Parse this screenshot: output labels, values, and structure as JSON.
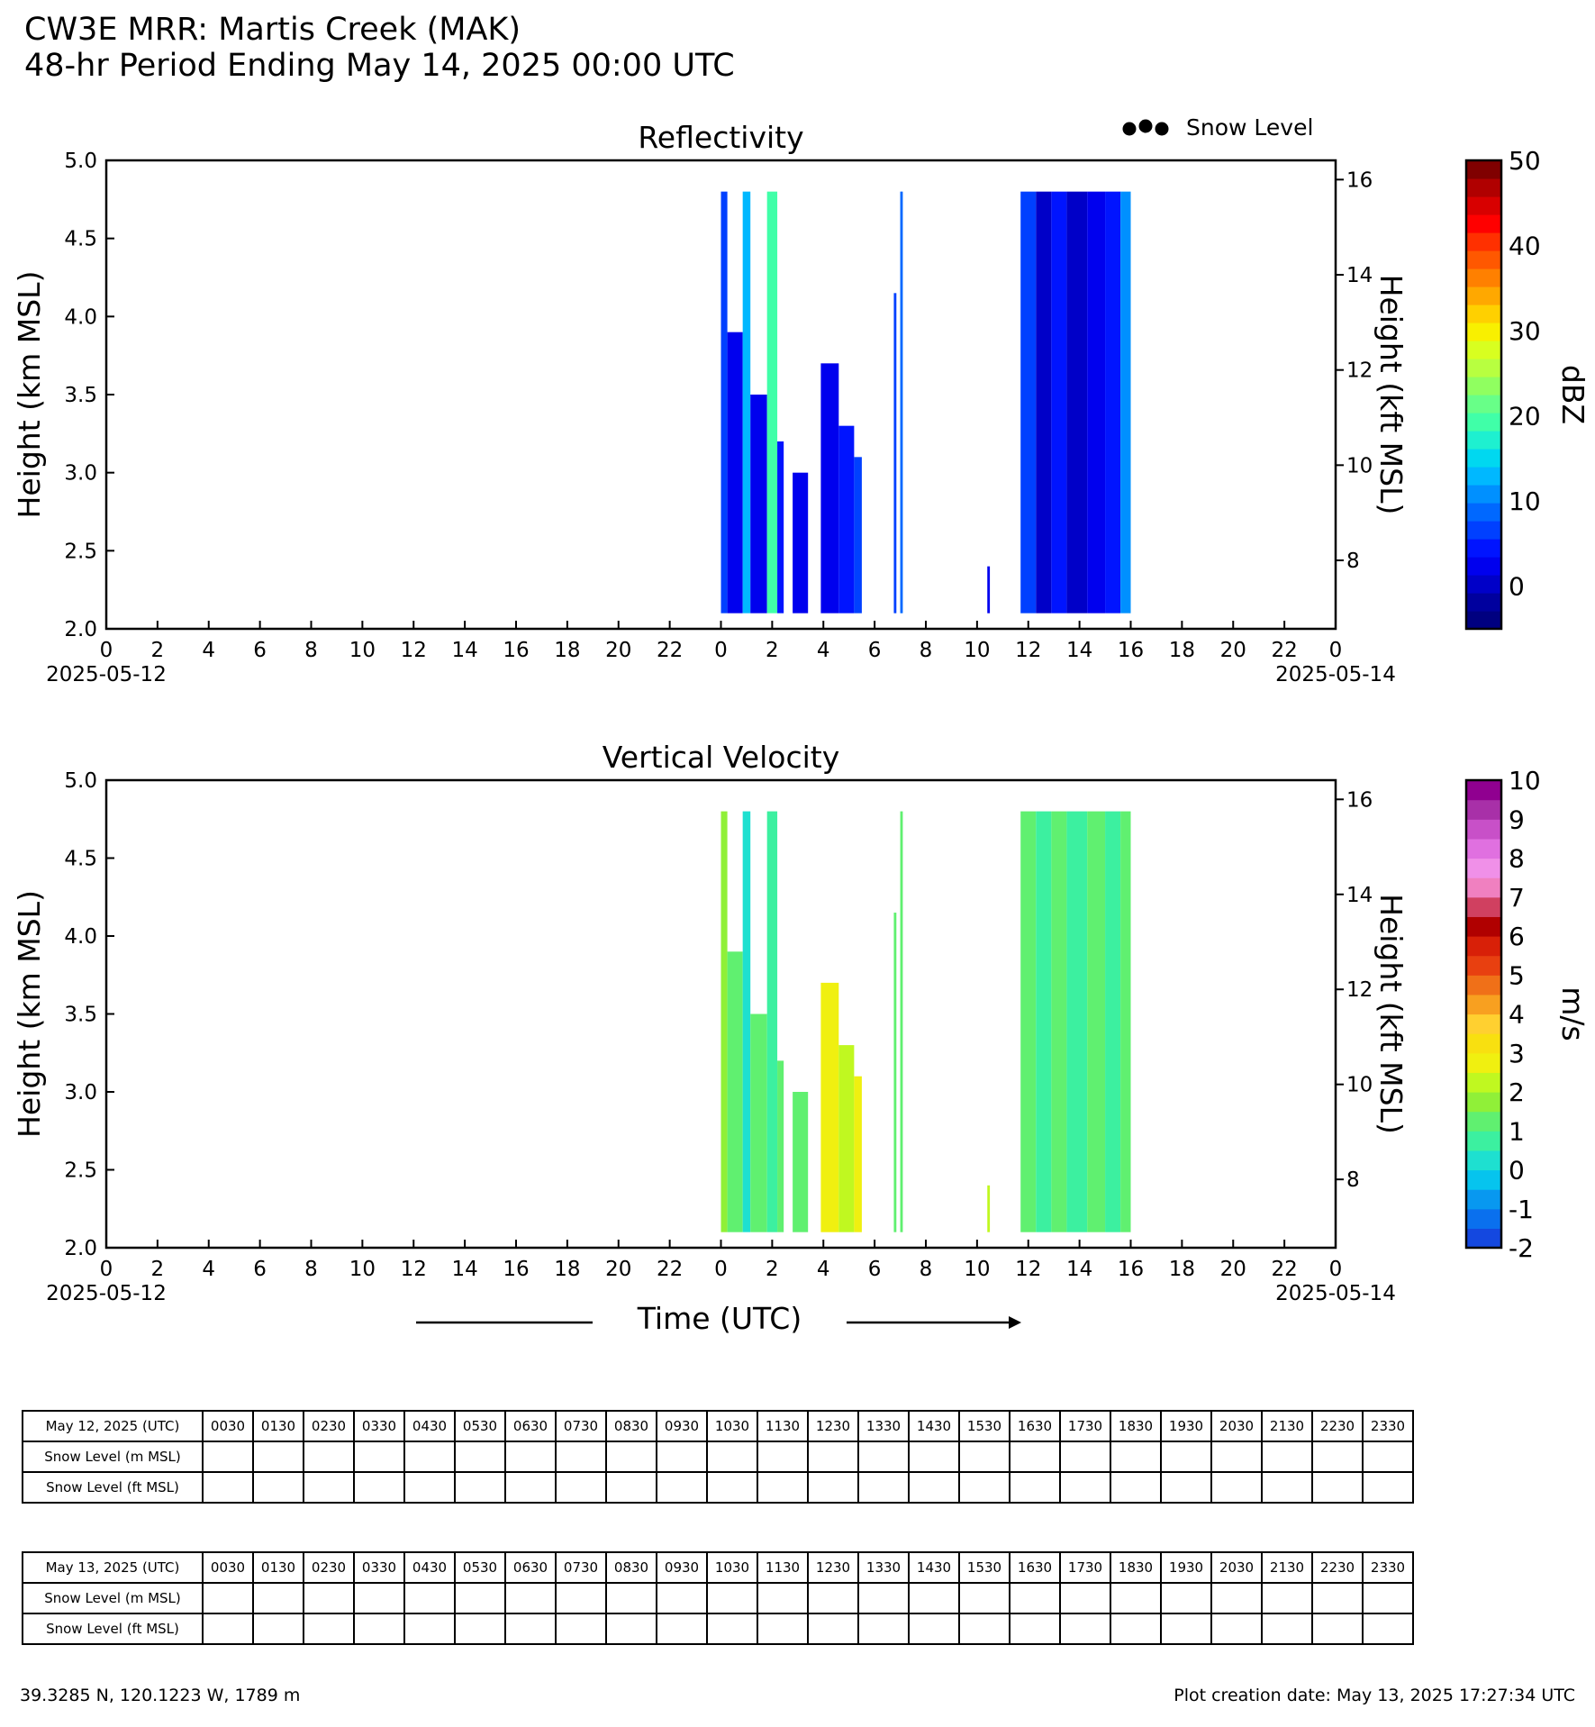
{
  "header": {
    "title": "CW3E MRR: Martis Creek (MAK)",
    "subtitle": "48-hr Period Ending May 14, 2025 00:00 UTC"
  },
  "legend": {
    "snow_level_label": "Snow Level"
  },
  "xaxis": {
    "tick_labels": [
      "0",
      "2",
      "4",
      "6",
      "8",
      "10",
      "12",
      "14",
      "16",
      "18",
      "20",
      "22",
      "0",
      "2",
      "4",
      "6",
      "8",
      "10",
      "12",
      "14",
      "16",
      "18",
      "20",
      "22",
      "0"
    ],
    "range_hours": [
      0,
      48
    ],
    "start_date_label": "2025-05-12",
    "end_date_label": "2025-05-14",
    "time_label": "Time (UTC)"
  },
  "chart_data": [
    {
      "type": "heatmap",
      "title": "Reflectivity",
      "ylabel": "Height (km MSL)",
      "ylabel_right": "Height (kft MSL)",
      "ylim": [
        2.0,
        5.0
      ],
      "yticks": [
        "2.0",
        "2.5",
        "3.0",
        "3.5",
        "4.0",
        "4.5",
        "5.0"
      ],
      "yticks_right": [
        "8",
        "10",
        "12",
        "14",
        "16"
      ],
      "colorbar": {
        "label": "dBZ",
        "range": [
          -5,
          50
        ],
        "ticks": [
          "0",
          "10",
          "20",
          "30",
          "40",
          "50"
        ],
        "colors": [
          "#000080",
          "#00009e",
          "#0000c8",
          "#0000ee",
          "#0014ff",
          "#0040ff",
          "#0068ff",
          "#0090ff",
          "#00b8ff",
          "#00d8f0",
          "#1ef0d0",
          "#40ffa8",
          "#68ff88",
          "#90ff60",
          "#b8ff40",
          "#d8ff20",
          "#f8f000",
          "#ffd000",
          "#ffa800",
          "#ff8000",
          "#ff5800",
          "#ff3000",
          "#ff0000",
          "#d80000",
          "#b00000",
          "#800000"
        ]
      },
      "rain_blocks": [
        {
          "start_h": 24.0,
          "end_h": 24.25,
          "top_km": 4.8,
          "dbz": 6
        },
        {
          "start_h": 24.25,
          "end_h": 24.85,
          "top_km": 3.9,
          "dbz": 3
        },
        {
          "start_h": 24.85,
          "end_h": 25.15,
          "top_km": 4.8,
          "dbz": 14
        },
        {
          "start_h": 25.15,
          "end_h": 25.8,
          "top_km": 3.5,
          "dbz": 2
        },
        {
          "start_h": 25.8,
          "end_h": 26.2,
          "top_km": 4.8,
          "dbz": 19
        },
        {
          "start_h": 26.2,
          "end_h": 26.45,
          "top_km": 3.2,
          "dbz": 4
        },
        {
          "start_h": 26.8,
          "end_h": 27.4,
          "top_km": 3.0,
          "dbz": 3
        },
        {
          "start_h": 27.9,
          "end_h": 28.6,
          "top_km": 3.7,
          "dbz": 2
        },
        {
          "start_h": 28.6,
          "end_h": 29.2,
          "top_km": 3.3,
          "dbz": 5
        },
        {
          "start_h": 29.2,
          "end_h": 29.5,
          "top_km": 3.1,
          "dbz": 7
        },
        {
          "start_h": 30.75,
          "end_h": 30.85,
          "top_km": 4.15,
          "dbz": 6
        },
        {
          "start_h": 31.0,
          "end_h": 31.1,
          "top_km": 4.8,
          "dbz": 9
        },
        {
          "start_h": 34.4,
          "end_h": 34.5,
          "top_km": 2.4,
          "dbz": 3
        },
        {
          "start_h": 35.7,
          "end_h": 36.3,
          "top_km": 4.8,
          "dbz": 6
        },
        {
          "start_h": 36.3,
          "end_h": 36.9,
          "top_km": 4.8,
          "dbz": 1
        },
        {
          "start_h": 36.9,
          "end_h": 37.5,
          "top_km": 4.8,
          "dbz": 4
        },
        {
          "start_h": 37.5,
          "end_h": 38.3,
          "top_km": 4.8,
          "dbz": 0
        },
        {
          "start_h": 38.3,
          "end_h": 39.0,
          "top_km": 4.8,
          "dbz": 2
        },
        {
          "start_h": 39.0,
          "end_h": 39.6,
          "top_km": 4.8,
          "dbz": 5
        },
        {
          "start_h": 39.6,
          "end_h": 40.0,
          "top_km": 4.8,
          "dbz": 11
        }
      ]
    },
    {
      "type": "heatmap",
      "title": "Vertical Velocity",
      "ylabel": "Height (km MSL)",
      "ylabel_right": "Height (kft MSL)",
      "ylim": [
        2.0,
        5.0
      ],
      "yticks": [
        "2.0",
        "2.5",
        "3.0",
        "3.5",
        "4.0",
        "4.5",
        "5.0"
      ],
      "yticks_right": [
        "8",
        "10",
        "12",
        "14",
        "16"
      ],
      "colorbar": {
        "label": "m/s",
        "range": [
          -2,
          10
        ],
        "ticks": [
          "-2",
          "-1",
          "0",
          "1",
          "2",
          "3",
          "4",
          "5",
          "6",
          "7",
          "8",
          "9",
          "10"
        ],
        "colors": [
          "#1448e0",
          "#0a70ee",
          "#0898f0",
          "#06c4ee",
          "#1ee0d0",
          "#3cf0a0",
          "#60f070",
          "#90f038",
          "#c0f820",
          "#f0f010",
          "#f8e010",
          "#ffd030",
          "#f8a020",
          "#f07018",
          "#e84010",
          "#d82008",
          "#b00000",
          "#d04060",
          "#f080c0",
          "#f090e8",
          "#e070e0",
          "#c850c8",
          "#a830a8",
          "#900090"
        ]
      },
      "rain_blocks": [
        {
          "start_h": 24.0,
          "end_h": 24.25,
          "top_km": 4.8,
          "ms": 1.5
        },
        {
          "start_h": 24.25,
          "end_h": 24.85,
          "top_km": 3.9,
          "ms": 1.2
        },
        {
          "start_h": 24.85,
          "end_h": 25.15,
          "top_km": 4.8,
          "ms": 0.4
        },
        {
          "start_h": 25.15,
          "end_h": 25.8,
          "top_km": 3.5,
          "ms": 1.0
        },
        {
          "start_h": 25.8,
          "end_h": 26.2,
          "top_km": 4.8,
          "ms": 0.6
        },
        {
          "start_h": 26.2,
          "end_h": 26.45,
          "top_km": 3.2,
          "ms": 1.4
        },
        {
          "start_h": 26.8,
          "end_h": 27.4,
          "top_km": 3.0,
          "ms": 1.3
        },
        {
          "start_h": 27.9,
          "end_h": 28.6,
          "top_km": 3.7,
          "ms": 2.5
        },
        {
          "start_h": 28.6,
          "end_h": 29.2,
          "top_km": 3.3,
          "ms": 2.2
        },
        {
          "start_h": 29.2,
          "end_h": 29.5,
          "top_km": 3.1,
          "ms": 2.7
        },
        {
          "start_h": 30.75,
          "end_h": 30.85,
          "top_km": 4.15,
          "ms": 1.0
        },
        {
          "start_h": 31.0,
          "end_h": 31.1,
          "top_km": 4.8,
          "ms": 1.0
        },
        {
          "start_h": 34.4,
          "end_h": 34.5,
          "top_km": 2.4,
          "ms": 2.2
        },
        {
          "start_h": 35.7,
          "end_h": 36.3,
          "top_km": 4.8,
          "ms": 1.2
        },
        {
          "start_h": 36.3,
          "end_h": 36.9,
          "top_km": 4.8,
          "ms": 0.6
        },
        {
          "start_h": 36.9,
          "end_h": 37.5,
          "top_km": 4.8,
          "ms": 1.1
        },
        {
          "start_h": 37.5,
          "end_h": 38.3,
          "top_km": 4.8,
          "ms": 0.7
        },
        {
          "start_h": 38.3,
          "end_h": 39.0,
          "top_km": 4.8,
          "ms": 1.3
        },
        {
          "start_h": 39.0,
          "end_h": 39.6,
          "top_km": 4.8,
          "ms": 0.8
        },
        {
          "start_h": 39.6,
          "end_h": 40.0,
          "top_km": 4.8,
          "ms": 1.0
        }
      ]
    }
  ],
  "tables": {
    "times": [
      "0030",
      "0130",
      "0230",
      "0330",
      "0430",
      "0530",
      "0630",
      "0730",
      "0830",
      "0930",
      "1030",
      "1130",
      "1230",
      "1330",
      "1430",
      "1530",
      "1630",
      "1730",
      "1830",
      "1930",
      "2030",
      "2130",
      "2230",
      "2330"
    ],
    "row_m": "Snow Level (m MSL)",
    "row_ft": "Snow Level (ft MSL)",
    "day1": "May 12, 2025 (UTC)",
    "day2": "May 13, 2025 (UTC)"
  },
  "footer": {
    "location": "39.3285 N, 120.1223 W, 1789 m",
    "created": "Plot creation date: May 13, 2025 17:27:34 UTC"
  }
}
